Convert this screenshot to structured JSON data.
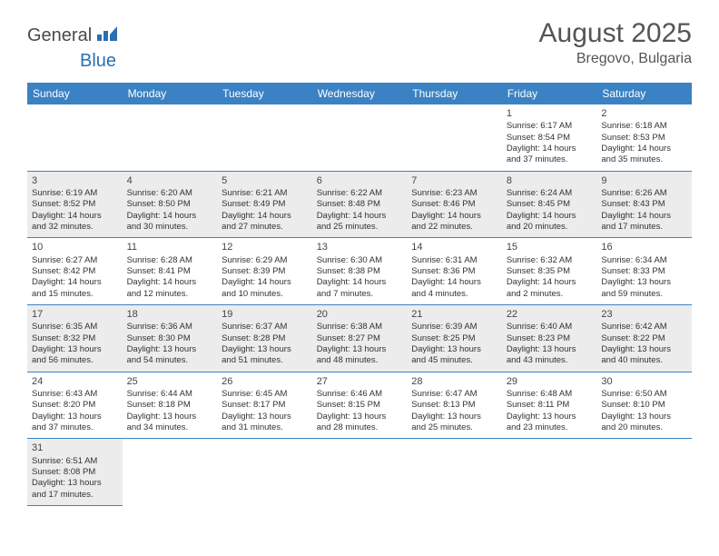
{
  "logo": {
    "general": "General",
    "blue": "Blue"
  },
  "title": "August 2025",
  "location": "Bregovo, Bulgaria",
  "colors": {
    "header_bg": "#3b82c4",
    "header_text": "#ffffff",
    "shaded_bg": "#ececec",
    "border": "#3b82c4",
    "logo_gray": "#4a4a4a",
    "logo_blue": "#2a6fb5",
    "text": "#333333"
  },
  "day_headers": [
    "Sunday",
    "Monday",
    "Tuesday",
    "Wednesday",
    "Thursday",
    "Friday",
    "Saturday"
  ],
  "weeks": [
    [
      null,
      null,
      null,
      null,
      null,
      {
        "n": "1",
        "sr": "Sunrise: 6:17 AM",
        "ss": "Sunset: 8:54 PM",
        "dl": "Daylight: 14 hours and 37 minutes."
      },
      {
        "n": "2",
        "sr": "Sunrise: 6:18 AM",
        "ss": "Sunset: 8:53 PM",
        "dl": "Daylight: 14 hours and 35 minutes."
      }
    ],
    [
      {
        "n": "3",
        "sr": "Sunrise: 6:19 AM",
        "ss": "Sunset: 8:52 PM",
        "dl": "Daylight: 14 hours and 32 minutes.",
        "shaded": true
      },
      {
        "n": "4",
        "sr": "Sunrise: 6:20 AM",
        "ss": "Sunset: 8:50 PM",
        "dl": "Daylight: 14 hours and 30 minutes.",
        "shaded": true
      },
      {
        "n": "5",
        "sr": "Sunrise: 6:21 AM",
        "ss": "Sunset: 8:49 PM",
        "dl": "Daylight: 14 hours and 27 minutes.",
        "shaded": true
      },
      {
        "n": "6",
        "sr": "Sunrise: 6:22 AM",
        "ss": "Sunset: 8:48 PM",
        "dl": "Daylight: 14 hours and 25 minutes.",
        "shaded": true
      },
      {
        "n": "7",
        "sr": "Sunrise: 6:23 AM",
        "ss": "Sunset: 8:46 PM",
        "dl": "Daylight: 14 hours and 22 minutes.",
        "shaded": true
      },
      {
        "n": "8",
        "sr": "Sunrise: 6:24 AM",
        "ss": "Sunset: 8:45 PM",
        "dl": "Daylight: 14 hours and 20 minutes.",
        "shaded": true
      },
      {
        "n": "9",
        "sr": "Sunrise: 6:26 AM",
        "ss": "Sunset: 8:43 PM",
        "dl": "Daylight: 14 hours and 17 minutes.",
        "shaded": true
      }
    ],
    [
      {
        "n": "10",
        "sr": "Sunrise: 6:27 AM",
        "ss": "Sunset: 8:42 PM",
        "dl": "Daylight: 14 hours and 15 minutes."
      },
      {
        "n": "11",
        "sr": "Sunrise: 6:28 AM",
        "ss": "Sunset: 8:41 PM",
        "dl": "Daylight: 14 hours and 12 minutes."
      },
      {
        "n": "12",
        "sr": "Sunrise: 6:29 AM",
        "ss": "Sunset: 8:39 PM",
        "dl": "Daylight: 14 hours and 10 minutes."
      },
      {
        "n": "13",
        "sr": "Sunrise: 6:30 AM",
        "ss": "Sunset: 8:38 PM",
        "dl": "Daylight: 14 hours and 7 minutes."
      },
      {
        "n": "14",
        "sr": "Sunrise: 6:31 AM",
        "ss": "Sunset: 8:36 PM",
        "dl": "Daylight: 14 hours and 4 minutes."
      },
      {
        "n": "15",
        "sr": "Sunrise: 6:32 AM",
        "ss": "Sunset: 8:35 PM",
        "dl": "Daylight: 14 hours and 2 minutes."
      },
      {
        "n": "16",
        "sr": "Sunrise: 6:34 AM",
        "ss": "Sunset: 8:33 PM",
        "dl": "Daylight: 13 hours and 59 minutes."
      }
    ],
    [
      {
        "n": "17",
        "sr": "Sunrise: 6:35 AM",
        "ss": "Sunset: 8:32 PM",
        "dl": "Daylight: 13 hours and 56 minutes.",
        "shaded": true
      },
      {
        "n": "18",
        "sr": "Sunrise: 6:36 AM",
        "ss": "Sunset: 8:30 PM",
        "dl": "Daylight: 13 hours and 54 minutes.",
        "shaded": true
      },
      {
        "n": "19",
        "sr": "Sunrise: 6:37 AM",
        "ss": "Sunset: 8:28 PM",
        "dl": "Daylight: 13 hours and 51 minutes.",
        "shaded": true
      },
      {
        "n": "20",
        "sr": "Sunrise: 6:38 AM",
        "ss": "Sunset: 8:27 PM",
        "dl": "Daylight: 13 hours and 48 minutes.",
        "shaded": true
      },
      {
        "n": "21",
        "sr": "Sunrise: 6:39 AM",
        "ss": "Sunset: 8:25 PM",
        "dl": "Daylight: 13 hours and 45 minutes.",
        "shaded": true
      },
      {
        "n": "22",
        "sr": "Sunrise: 6:40 AM",
        "ss": "Sunset: 8:23 PM",
        "dl": "Daylight: 13 hours and 43 minutes.",
        "shaded": true
      },
      {
        "n": "23",
        "sr": "Sunrise: 6:42 AM",
        "ss": "Sunset: 8:22 PM",
        "dl": "Daylight: 13 hours and 40 minutes.",
        "shaded": true
      }
    ],
    [
      {
        "n": "24",
        "sr": "Sunrise: 6:43 AM",
        "ss": "Sunset: 8:20 PM",
        "dl": "Daylight: 13 hours and 37 minutes."
      },
      {
        "n": "25",
        "sr": "Sunrise: 6:44 AM",
        "ss": "Sunset: 8:18 PM",
        "dl": "Daylight: 13 hours and 34 minutes."
      },
      {
        "n": "26",
        "sr": "Sunrise: 6:45 AM",
        "ss": "Sunset: 8:17 PM",
        "dl": "Daylight: 13 hours and 31 minutes."
      },
      {
        "n": "27",
        "sr": "Sunrise: 6:46 AM",
        "ss": "Sunset: 8:15 PM",
        "dl": "Daylight: 13 hours and 28 minutes."
      },
      {
        "n": "28",
        "sr": "Sunrise: 6:47 AM",
        "ss": "Sunset: 8:13 PM",
        "dl": "Daylight: 13 hours and 25 minutes."
      },
      {
        "n": "29",
        "sr": "Sunrise: 6:48 AM",
        "ss": "Sunset: 8:11 PM",
        "dl": "Daylight: 13 hours and 23 minutes."
      },
      {
        "n": "30",
        "sr": "Sunrise: 6:50 AM",
        "ss": "Sunset: 8:10 PM",
        "dl": "Daylight: 13 hours and 20 minutes."
      }
    ],
    [
      {
        "n": "31",
        "sr": "Sunrise: 6:51 AM",
        "ss": "Sunset: 8:08 PM",
        "dl": "Daylight: 13 hours and 17 minutes.",
        "shaded": true
      },
      null,
      null,
      null,
      null,
      null,
      null
    ]
  ]
}
